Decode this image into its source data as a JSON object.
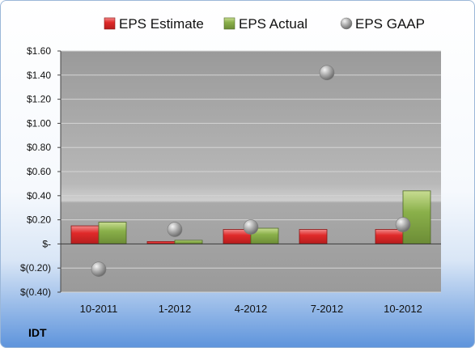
{
  "ticker": "IDT",
  "chart_data": {
    "type": "bar",
    "categories": [
      "10-2011",
      "1-2012",
      "4-2012",
      "7-2012",
      "10-2012"
    ],
    "series": [
      {
        "name": "EPS Estimate",
        "kind": "bar",
        "color": "#d9262b",
        "values": [
          0.15,
          0.02,
          0.12,
          0.12,
          0.12
        ]
      },
      {
        "name": "EPS Actual",
        "kind": "bar",
        "color": "#8ab04a",
        "values": [
          0.18,
          0.03,
          0.13,
          null,
          0.44
        ]
      },
      {
        "name": "EPS GAAP",
        "kind": "marker",
        "color": "#a7a7a7",
        "values": [
          -0.21,
          0.12,
          0.14,
          1.42,
          0.16
        ]
      }
    ],
    "yticks": [
      1.6,
      1.4,
      1.2,
      1.0,
      0.8,
      0.6,
      0.4,
      0.2,
      0,
      -0.2,
      -0.4
    ],
    "ytick_labels": [
      "$1.60",
      "$1.40",
      "$1.20",
      "$1.00",
      "$0.80",
      "$0.60",
      "$0.40",
      "$0.20",
      "$-",
      "$(0.20)",
      "$(0.40)"
    ],
    "ylim": [
      -0.4,
      1.6
    ],
    "legend": "top",
    "grid": true
  }
}
